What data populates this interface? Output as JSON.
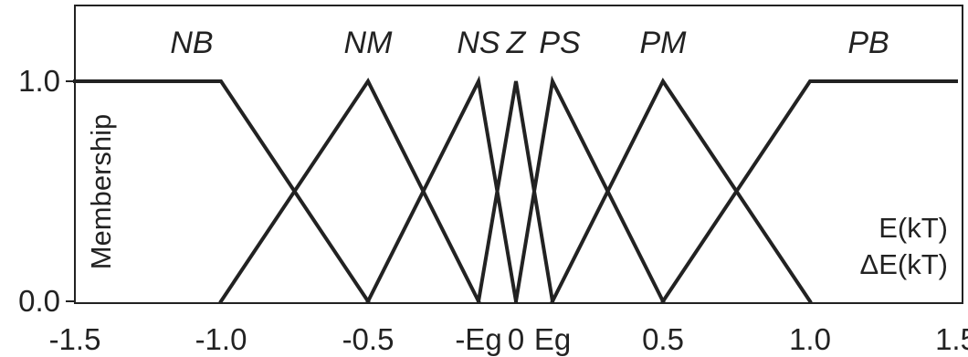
{
  "chart_data": {
    "type": "line",
    "title": "",
    "ylabel": "Membership",
    "xlabels": [
      "E(kT)",
      "ΔE(kT)"
    ],
    "xlim": [
      -1.5,
      1.5
    ],
    "ylim": [
      0,
      1
    ],
    "y_ticks": [
      {
        "value": 1.0,
        "label": "1.0"
      },
      {
        "value": 0.0,
        "label": "0.0"
      }
    ],
    "x_ticks": [
      {
        "value": -1.5,
        "label": "-1.5"
      },
      {
        "value": -1.0,
        "label": "-1.0"
      },
      {
        "value": -0.5,
        "label": "-0.5"
      },
      {
        "value": -0.125,
        "label": "-Eg"
      },
      {
        "value": 0.0,
        "label": "0"
      },
      {
        "value": 0.125,
        "label": "Eg"
      },
      {
        "value": 0.5,
        "label": "0.5"
      },
      {
        "value": 1.0,
        "label": "1.0"
      },
      {
        "value": 1.5,
        "label": "1.5"
      }
    ],
    "series": [
      {
        "name": "NB",
        "label_x": -1.1,
        "points": [
          [
            -1.5,
            1
          ],
          [
            -1.0,
            1
          ],
          [
            -0.5,
            0
          ]
        ]
      },
      {
        "name": "NM",
        "label_x": -0.5,
        "points": [
          [
            -1.0,
            0
          ],
          [
            -0.5,
            1
          ],
          [
            -0.125,
            0
          ]
        ]
      },
      {
        "name": "NS",
        "label_x": -0.125,
        "points": [
          [
            -0.5,
            0
          ],
          [
            -0.125,
            1
          ],
          [
            0.0,
            0
          ]
        ]
      },
      {
        "name": "Z",
        "label_x": 0.0,
        "points": [
          [
            -0.125,
            0
          ],
          [
            0.0,
            1
          ],
          [
            0.125,
            0
          ]
        ]
      },
      {
        "name": "PS",
        "label_x": 0.15,
        "points": [
          [
            0.0,
            0
          ],
          [
            0.125,
            1
          ],
          [
            0.5,
            0
          ]
        ]
      },
      {
        "name": "PM",
        "label_x": 0.5,
        "points": [
          [
            0.125,
            0
          ],
          [
            0.5,
            1
          ],
          [
            1.0,
            0
          ]
        ]
      },
      {
        "name": "PB",
        "label_x": 1.2,
        "points": [
          [
            0.5,
            0
          ],
          [
            1.0,
            1
          ],
          [
            1.5,
            1
          ]
        ]
      }
    ]
  }
}
